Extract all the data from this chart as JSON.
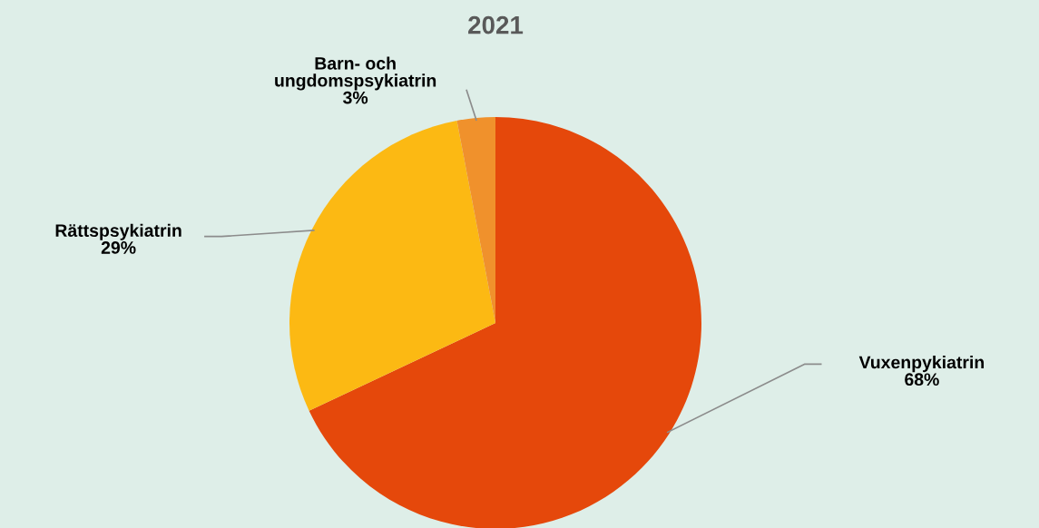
{
  "chart_data": {
    "type": "pie",
    "title": "2021",
    "categories": [
      "Vuxenpykiatrin",
      "Rättspsykiatrin",
      "Barn- och\nungdomspsykiatrin"
    ],
    "values": [
      68,
      29,
      3
    ],
    "colors": [
      "#e5480b",
      "#fcb913",
      "#f0912c"
    ],
    "value_labels": [
      "68%",
      "29%",
      "3%"
    ],
    "legend": false
  }
}
